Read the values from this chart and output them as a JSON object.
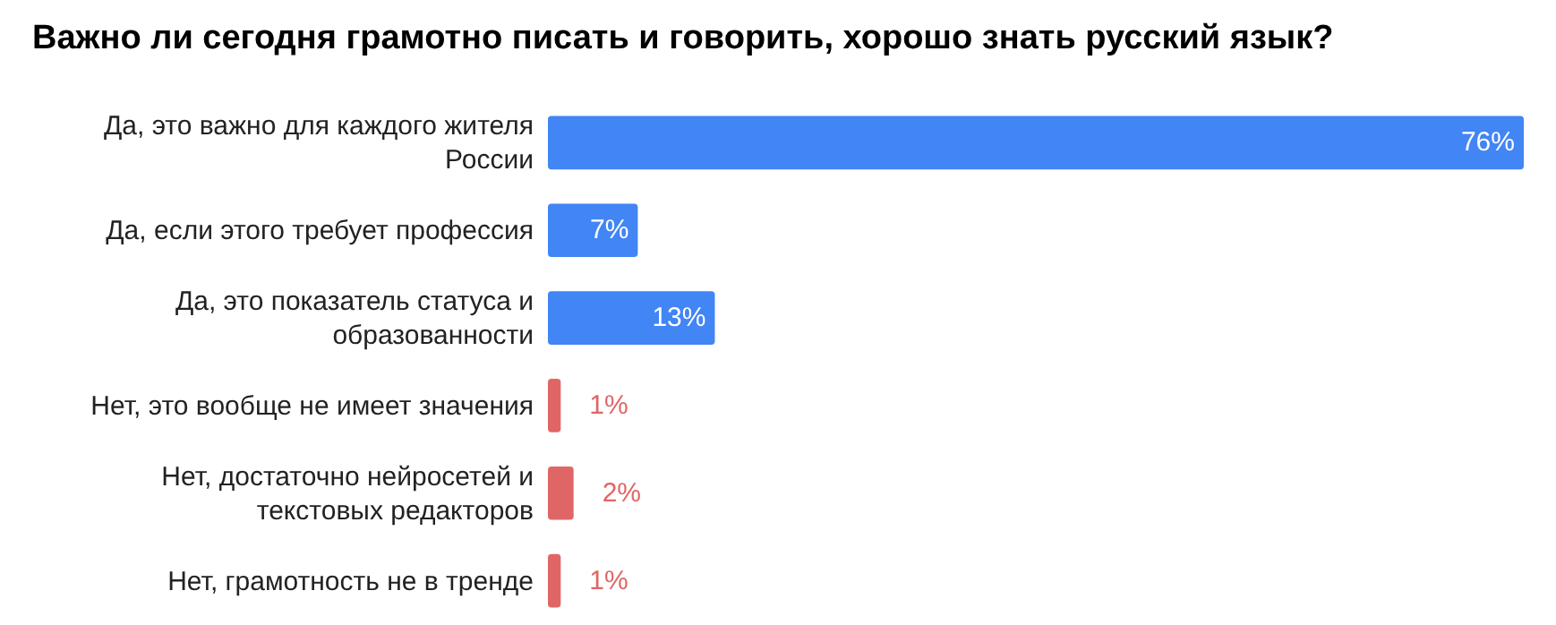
{
  "chart_data": {
    "type": "bar",
    "orientation": "horizontal",
    "title": "Важно ли сегодня грамотно писать и говорить, хорошо знать русский язык?",
    "categories": [
      "Да, это важно для каждого жителя России",
      "Да, если этого требует профессия",
      "Да, это показатель статуса и образованности",
      "Нет, это вообще не имеет значения",
      "Нет, достаточно нейросетей и текстовых редакторов",
      "Нет, грамотность не в тренде"
    ],
    "values": [
      76,
      7,
      13,
      1,
      2,
      1
    ],
    "colors": [
      "#4285f4",
      "#4285f4",
      "#4285f4",
      "#e06666",
      "#e06666",
      "#e06666"
    ],
    "value_labels": [
      "76%",
      "7%",
      "13%",
      "1%",
      "2%",
      "1%"
    ]
  }
}
